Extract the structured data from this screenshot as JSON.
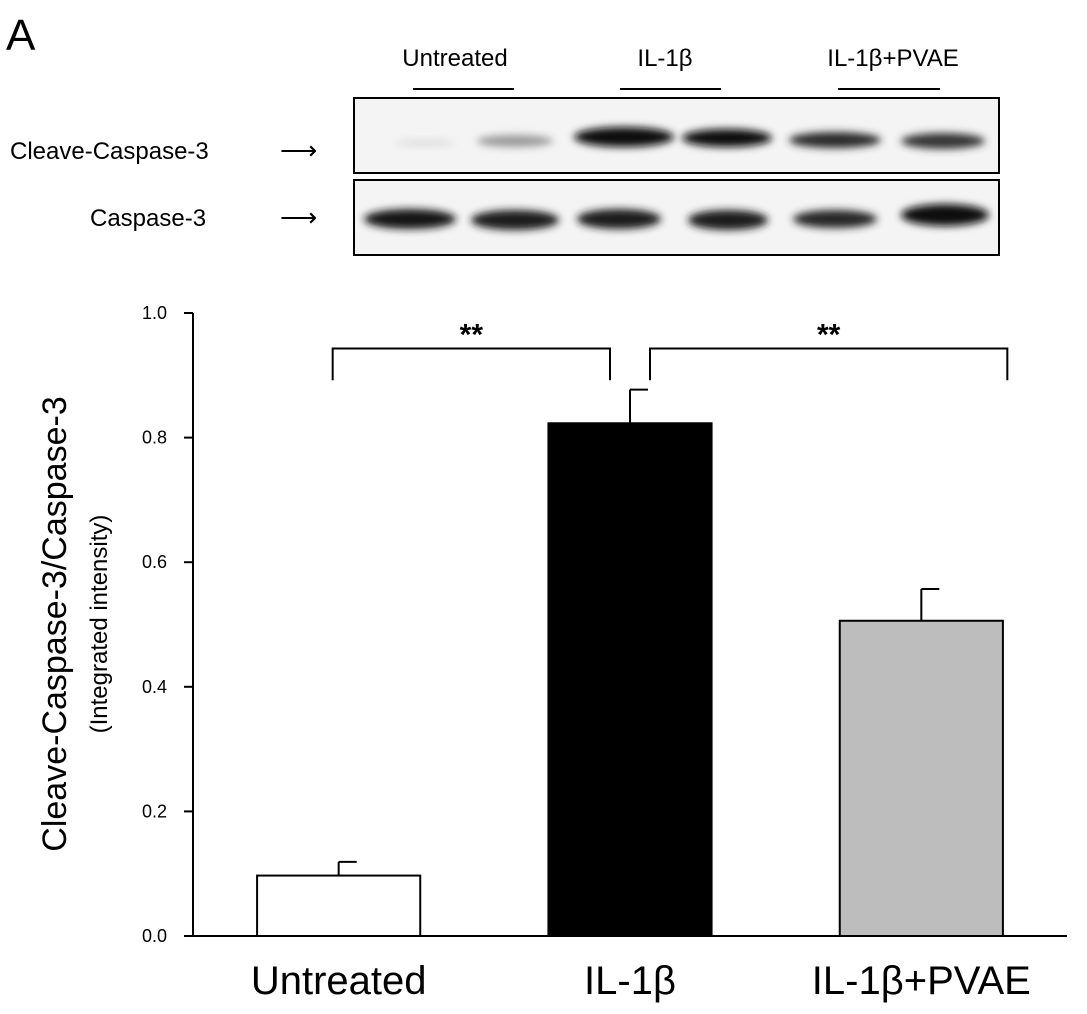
{
  "panel_label": "A",
  "blot": {
    "group_labels": [
      "Untreated",
      "IL-1β",
      "IL-1β+PVAE"
    ],
    "row_labels": [
      "Cleave-Caspase-3",
      "Caspase-3"
    ],
    "arrow": "⟶"
  },
  "colors": {
    "axis": "#000000",
    "blot_background": "#f4f4f4",
    "band": "#1a1a1a"
  },
  "chart_data": {
    "type": "bar",
    "title": "",
    "xlabel": "",
    "ylabel": "Cleave-Caspase-3/Caspase-3",
    "ylabel_sub": "(Integrated intensity)",
    "categories": [
      "Untreated",
      "IL-1β",
      "IL-1β+PVAE"
    ],
    "values": [
      0.097,
      0.823,
      0.506
    ],
    "errors": [
      0.022,
      0.054,
      0.051
    ],
    "bar_colors": [
      "#ffffff",
      "#000000",
      "#bdbdbd"
    ],
    "ylim": [
      0.0,
      1.0
    ],
    "yticks": [
      "0.0",
      "0.2",
      "0.4",
      "0.6",
      "0.8",
      "1.0"
    ],
    "grid": false,
    "significance": [
      {
        "from": 0,
        "to": 1,
        "label": "**"
      },
      {
        "from": 1,
        "to": 2,
        "label": "**"
      }
    ]
  }
}
